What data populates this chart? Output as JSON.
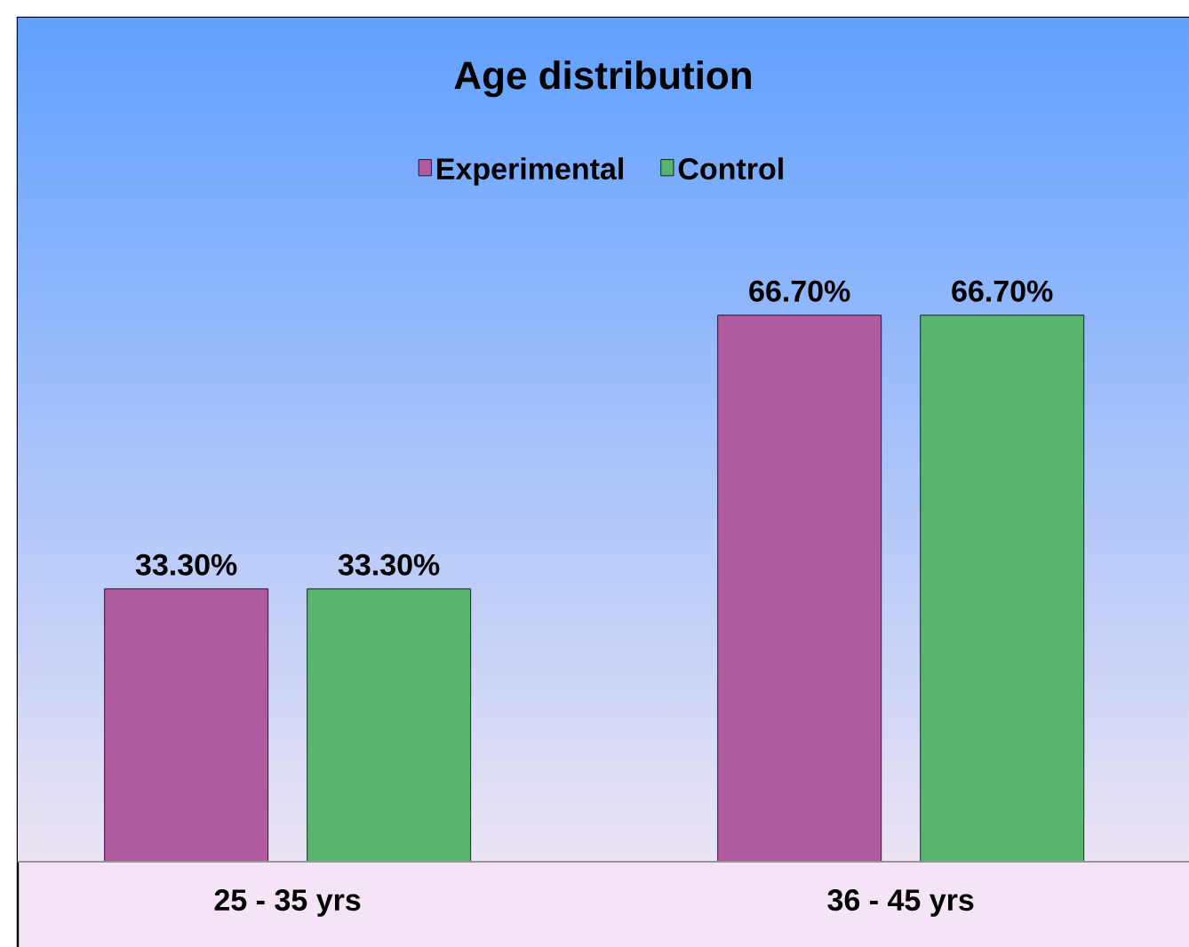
{
  "chart_data": {
    "type": "bar",
    "title": "Age distribution",
    "categories": [
      "25 - 35 yrs",
      "36  - 45 yrs"
    ],
    "series": [
      {
        "name": "Experimental",
        "color": "#b05aa0",
        "values": [
          33.3,
          66.7
        ],
        "value_labels": [
          "33.30%",
          "66.70%"
        ]
      },
      {
        "name": "Control",
        "color": "#58b56e",
        "values": [
          33.3,
          66.7
        ],
        "value_labels": [
          "33.30%",
          "66.70%"
        ]
      }
    ],
    "ylim": [
      0,
      103
    ],
    "tick_labels": "x",
    "legend": "top"
  }
}
